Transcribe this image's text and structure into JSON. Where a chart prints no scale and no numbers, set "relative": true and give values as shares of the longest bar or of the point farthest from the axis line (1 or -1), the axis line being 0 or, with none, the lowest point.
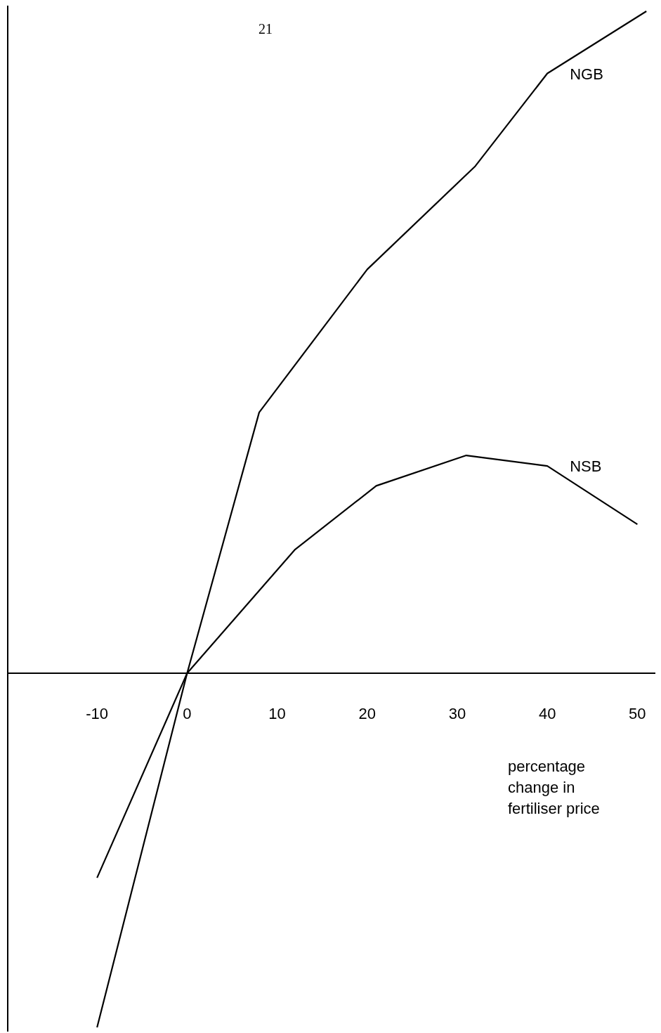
{
  "chart_data": {
    "type": "line",
    "relative": true,
    "xlabel": "percentage change in fertiliser price",
    "annotations": [
      "21"
    ],
    "xlim": [
      -20,
      52
    ],
    "xticks": [
      -10,
      0,
      10,
      20,
      30,
      40,
      50
    ],
    "grid": false,
    "ref_lines": [
      {
        "axis": "x",
        "value": -20,
        "color": "#000000"
      }
    ],
    "legend": false,
    "marker": "none",
    "line_style": "solid",
    "series": [
      {
        "name": "NGB",
        "color": "#000000",
        "x": [
          -10,
          0,
          8,
          20,
          32,
          40,
          51
        ],
        "values": [
          -0.535,
          0,
          0.394,
          0.61,
          0.766,
          0.906,
          1
        ]
      },
      {
        "name": "NSB",
        "color": "#000000",
        "x": [
          -10,
          0,
          12,
          21,
          31,
          40,
          50
        ],
        "values": [
          -0.309,
          0,
          0.187,
          0.283,
          0.329,
          0.313,
          0.225
        ]
      }
    ]
  }
}
